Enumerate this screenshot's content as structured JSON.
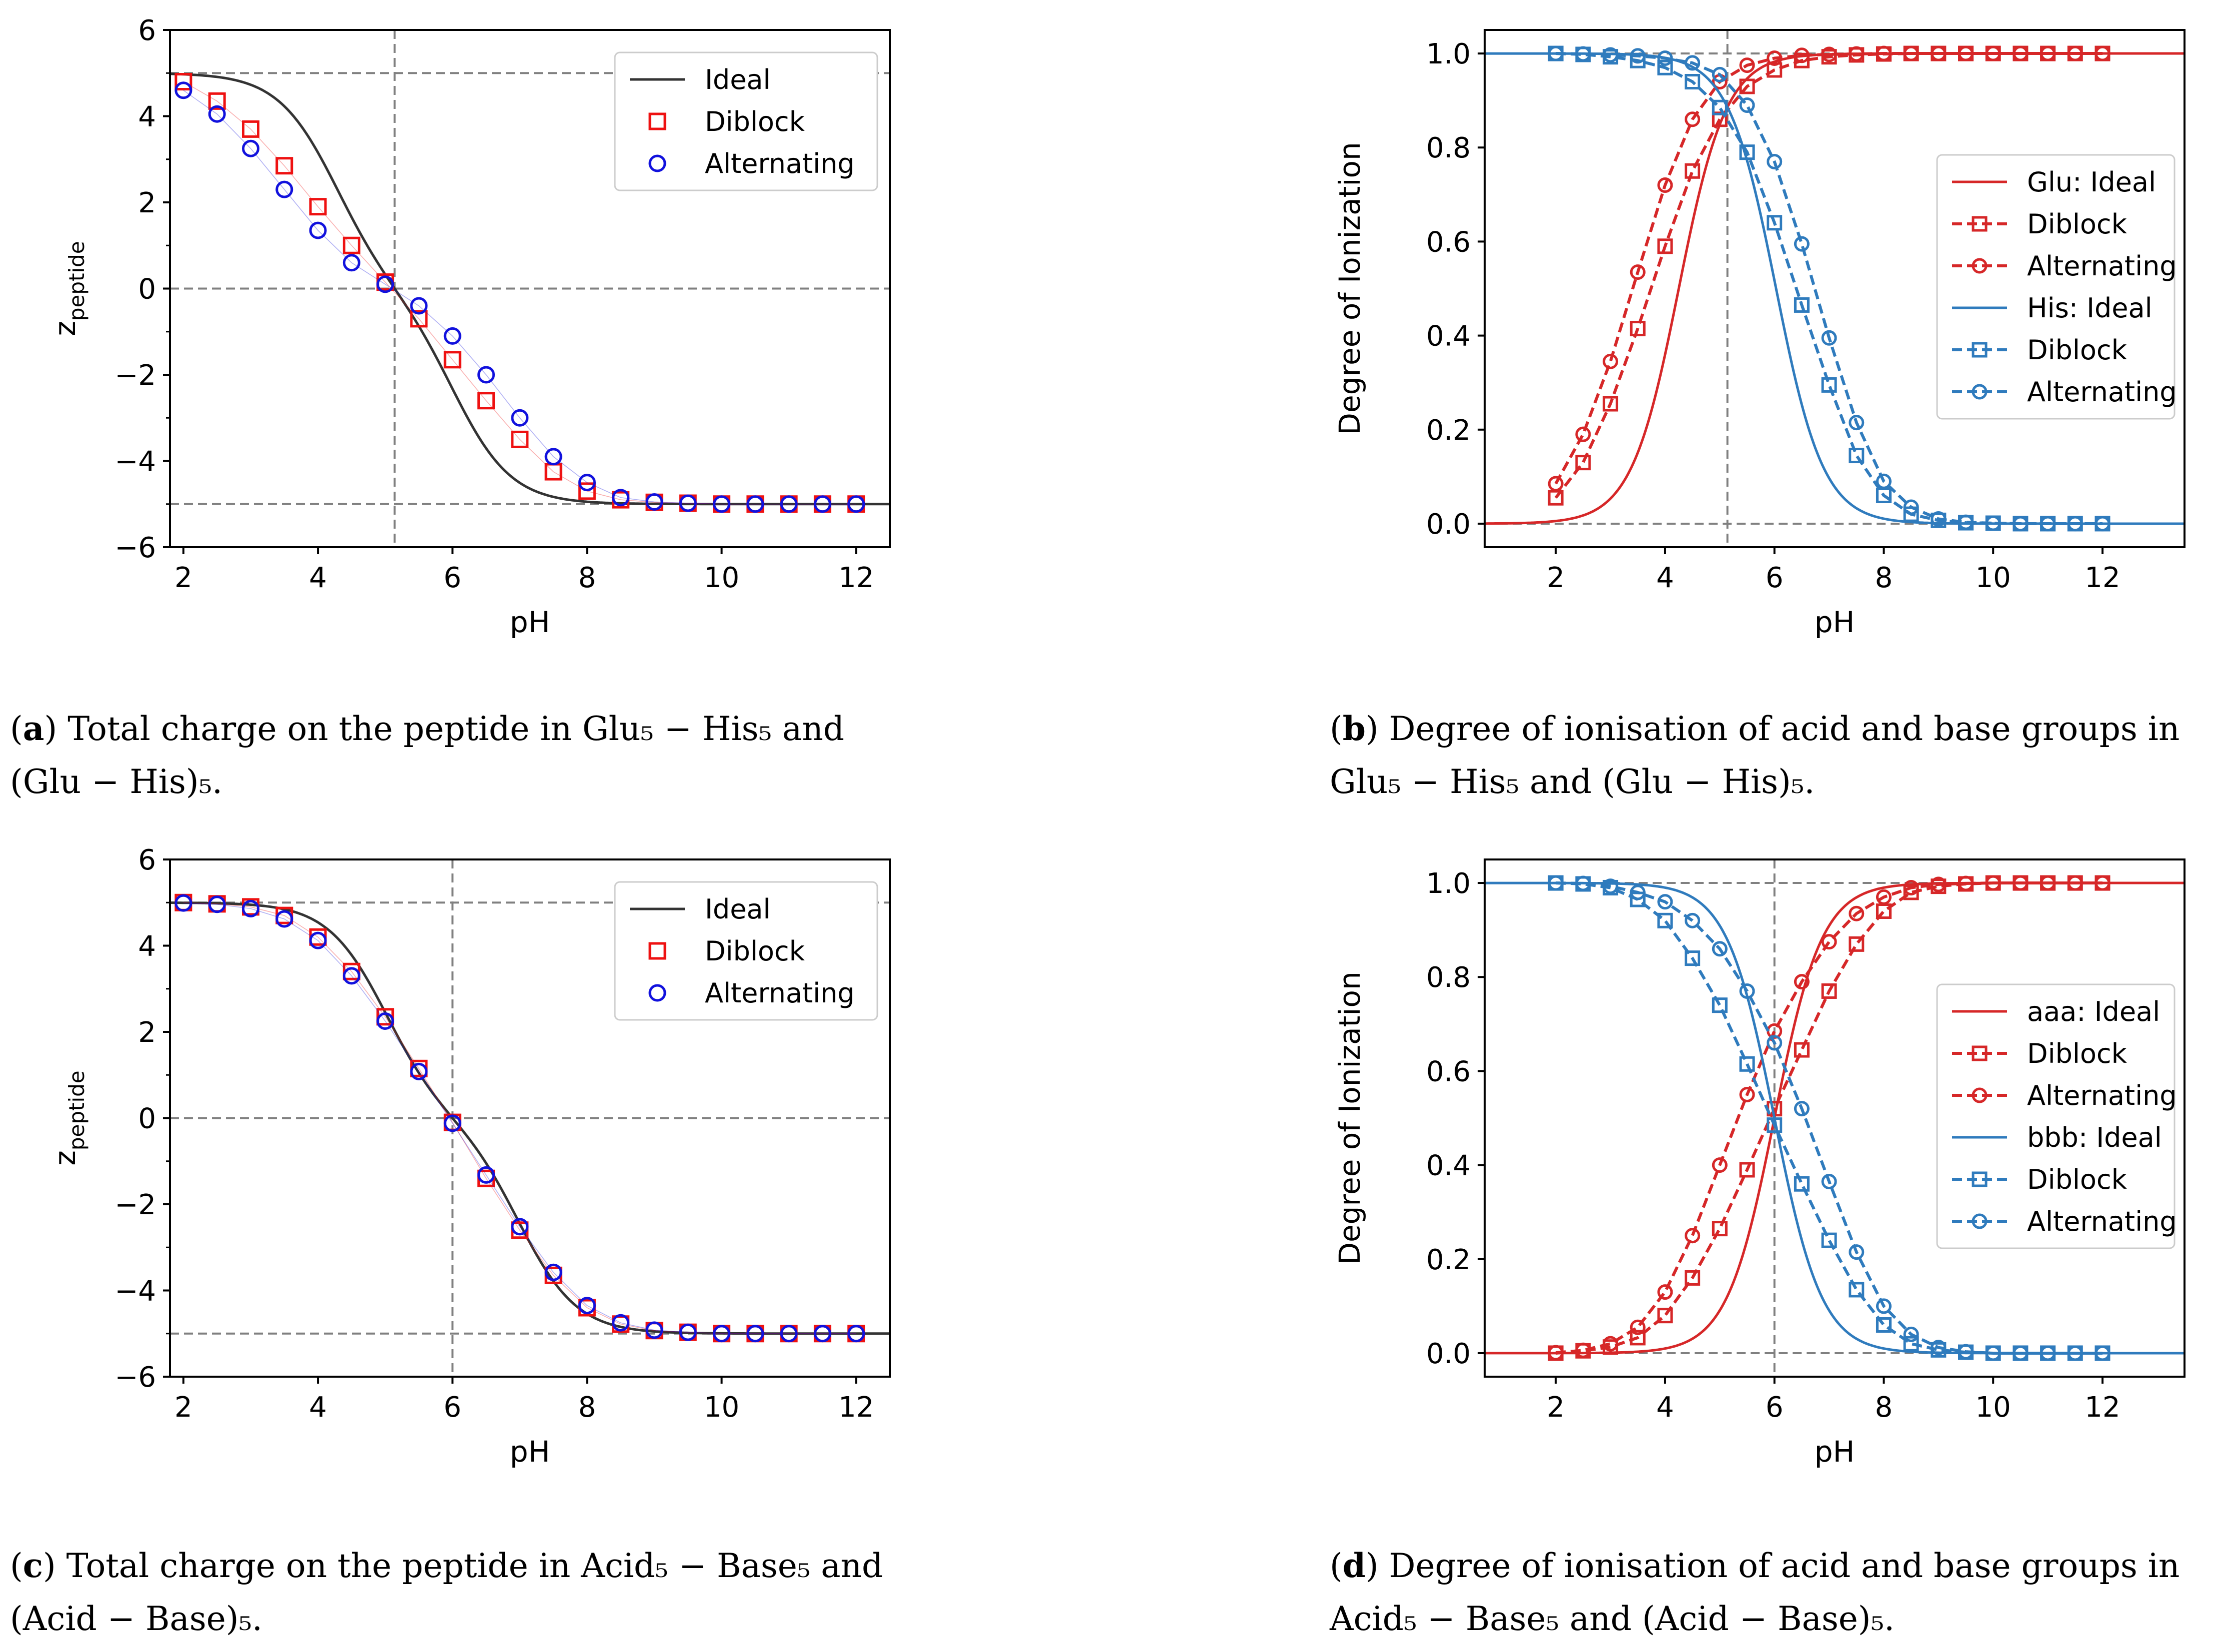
{
  "chart_data": [
    {
      "panel": "a",
      "type": "line",
      "xlabel": "pH",
      "ylabel": "z",
      "ylabel_subscript": "peptide",
      "xlim": [
        1.8,
        12.5
      ],
      "ylim": [
        -6,
        6
      ],
      "xticks": [
        2,
        4,
        6,
        8,
        10,
        12
      ],
      "yticks": [
        -6,
        -4,
        -2,
        0,
        2,
        4,
        6
      ],
      "hlines": [
        5,
        0,
        -5
      ],
      "vline": 5.14,
      "legend_position": "top-right",
      "series": [
        {
          "name": "Ideal",
          "style": "line",
          "color": "#333333",
          "curve": {
            "kind": "charge",
            "pka_acid": 4.25,
            "pka_base": 6.03,
            "n": 5
          }
        },
        {
          "name": "Diblock",
          "style": "square",
          "color": "#ee1111",
          "x": [
            2,
            2.5,
            3,
            3.5,
            4,
            4.5,
            5,
            5.5,
            6,
            6.5,
            7,
            7.5,
            8,
            8.5,
            9,
            9.5,
            10,
            10.5,
            11,
            11.5,
            12
          ],
          "y": [
            4.8,
            4.35,
            3.7,
            2.85,
            1.9,
            1.0,
            0.15,
            -0.7,
            -1.65,
            -2.6,
            -3.5,
            -4.25,
            -4.7,
            -4.9,
            -4.96,
            -4.98,
            -5.0,
            -5.0,
            -5.0,
            -5.0,
            -5.0
          ]
        },
        {
          "name": "Alternating",
          "style": "circle",
          "color": "#1111dd",
          "x": [
            2,
            2.5,
            3,
            3.5,
            4,
            4.5,
            5,
            5.5,
            6,
            6.5,
            7,
            7.5,
            8,
            8.5,
            9,
            9.5,
            10,
            10.5,
            11,
            11.5,
            12
          ],
          "y": [
            4.6,
            4.05,
            3.25,
            2.3,
            1.35,
            0.6,
            0.1,
            -0.4,
            -1.1,
            -2.0,
            -3.0,
            -3.9,
            -4.5,
            -4.85,
            -4.95,
            -4.98,
            -5.0,
            -5.0,
            -5.0,
            -5.0,
            -5.0
          ]
        }
      ]
    },
    {
      "panel": "b",
      "type": "line",
      "xlabel": "pH",
      "ylabel": "Degree of Ionization",
      "xlim": [
        0.7,
        13.5
      ],
      "ylim": [
        -0.05,
        1.05
      ],
      "xticks": [
        2,
        4,
        6,
        8,
        10,
        12
      ],
      "yticks": [
        0.0,
        0.2,
        0.4,
        0.6,
        0.8,
        1.0
      ],
      "hlines": [
        1.0,
        0.0
      ],
      "vline": 5.14,
      "legend_position": "center-right",
      "series": [
        {
          "name": "Glu: Ideal",
          "style": "line",
          "color": "#d62728",
          "curve": {
            "kind": "acid",
            "pka": 4.25
          }
        },
        {
          "name": "Diblock",
          "style": "dashed-square",
          "color": "#d62728",
          "x": [
            2,
            2.5,
            3,
            3.5,
            4,
            4.5,
            5,
            5.5,
            6,
            6.5,
            7,
            7.5,
            8,
            8.5,
            9,
            9.5,
            10,
            10.5,
            11,
            11.5,
            12
          ],
          "y": [
            0.055,
            0.13,
            0.255,
            0.415,
            0.59,
            0.75,
            0.86,
            0.93,
            0.965,
            0.985,
            0.993,
            0.997,
            0.999,
            1.0,
            1.0,
            1.0,
            1.0,
            1.0,
            1.0,
            1.0,
            1.0
          ]
        },
        {
          "name": "Alternating",
          "style": "dashed-circle",
          "color": "#d62728",
          "x": [
            2,
            2.5,
            3,
            3.5,
            4,
            4.5,
            5,
            5.5,
            6,
            6.5,
            7,
            7.5,
            8,
            8.5,
            9,
            9.5,
            10,
            10.5,
            11,
            11.5,
            12
          ],
          "y": [
            0.085,
            0.19,
            0.345,
            0.535,
            0.72,
            0.86,
            0.94,
            0.975,
            0.99,
            0.996,
            0.998,
            0.999,
            1.0,
            1.0,
            1.0,
            1.0,
            1.0,
            1.0,
            1.0,
            1.0,
            1.0
          ]
        },
        {
          "name": "His: Ideal",
          "style": "line",
          "color": "#2f7bbd",
          "curve": {
            "kind": "base",
            "pka": 6.03
          }
        },
        {
          "name": "Diblock",
          "style": "dashed-square",
          "color": "#2f7bbd",
          "x": [
            2,
            2.5,
            3,
            3.5,
            4,
            4.5,
            5,
            5.5,
            6,
            6.5,
            7,
            7.5,
            8,
            8.5,
            9,
            9.5,
            10,
            10.5,
            11,
            11.5,
            12
          ],
          "y": [
            1.0,
            0.998,
            0.993,
            0.985,
            0.97,
            0.94,
            0.885,
            0.79,
            0.64,
            0.465,
            0.295,
            0.145,
            0.06,
            0.02,
            0.007,
            0.002,
            0.001,
            0.0,
            0.0,
            0.0,
            0.0
          ]
        },
        {
          "name": "Alternating",
          "style": "dashed-circle",
          "color": "#2f7bbd",
          "x": [
            2,
            2.5,
            3,
            3.5,
            4,
            4.5,
            5,
            5.5,
            6,
            6.5,
            7,
            7.5,
            8,
            8.5,
            9,
            9.5,
            10,
            10.5,
            11,
            11.5,
            12
          ],
          "y": [
            1.0,
            0.999,
            0.997,
            0.995,
            0.99,
            0.98,
            0.955,
            0.89,
            0.77,
            0.595,
            0.395,
            0.215,
            0.09,
            0.035,
            0.01,
            0.003,
            0.001,
            0.0,
            0.0,
            0.0,
            0.0
          ]
        }
      ]
    },
    {
      "panel": "c",
      "type": "line",
      "xlabel": "pH",
      "ylabel": "z",
      "ylabel_subscript": "peptide",
      "xlim": [
        1.8,
        12.5
      ],
      "ylim": [
        -6,
        6
      ],
      "xticks": [
        2,
        4,
        6,
        8,
        10,
        12
      ],
      "yticks": [
        -6,
        -4,
        -2,
        0,
        2,
        4,
        6
      ],
      "hlines": [
        5,
        0,
        -5
      ],
      "vline": 6.0,
      "legend_position": "top-right",
      "series": [
        {
          "name": "Ideal",
          "style": "line",
          "color": "#333333",
          "curve": {
            "kind": "charge",
            "pka_acid": 5.0,
            "pka_base": 7.0,
            "n": 5
          }
        },
        {
          "name": "Diblock",
          "style": "square",
          "color": "#ee1111",
          "x": [
            2,
            2.5,
            3,
            3.5,
            4,
            4.5,
            5,
            5.5,
            6,
            6.5,
            7,
            7.5,
            8,
            8.5,
            9,
            9.5,
            10,
            10.5,
            11,
            11.5,
            12
          ],
          "y": [
            5.0,
            4.97,
            4.9,
            4.7,
            4.2,
            3.4,
            2.35,
            1.15,
            -0.1,
            -1.4,
            -2.6,
            -3.65,
            -4.4,
            -4.78,
            -4.93,
            -4.97,
            -5.0,
            -5.0,
            -5.0,
            -5.0,
            -5.0
          ]
        },
        {
          "name": "Alternating",
          "style": "circle",
          "color": "#1111dd",
          "x": [
            2,
            2.5,
            3,
            3.5,
            4,
            4.5,
            5,
            5.5,
            6,
            6.5,
            7,
            7.5,
            8,
            8.5,
            9,
            9.5,
            10,
            10.5,
            11,
            11.5,
            12
          ],
          "y": [
            4.99,
            4.96,
            4.86,
            4.62,
            4.12,
            3.3,
            2.25,
            1.08,
            -0.12,
            -1.32,
            -2.52,
            -3.58,
            -4.35,
            -4.75,
            -4.92,
            -4.97,
            -5.0,
            -5.0,
            -5.0,
            -5.0,
            -5.0
          ]
        }
      ]
    },
    {
      "panel": "d",
      "type": "line",
      "xlabel": "pH",
      "ylabel": "Degree of Ionization",
      "xlim": [
        0.7,
        13.5
      ],
      "ylim": [
        -0.05,
        1.05
      ],
      "xticks": [
        2,
        4,
        6,
        8,
        10,
        12
      ],
      "yticks": [
        0.0,
        0.2,
        0.4,
        0.6,
        0.8,
        1.0
      ],
      "hlines": [
        1.0,
        0.0
      ],
      "vline": 6.0,
      "legend_position": "center-right",
      "series": [
        {
          "name": "aaa: Ideal",
          "style": "line",
          "color": "#d62728",
          "curve": {
            "kind": "acid",
            "pka": 6.0
          }
        },
        {
          "name": "Diblock",
          "style": "dashed-square",
          "color": "#d62728",
          "x": [
            2,
            2.5,
            3,
            3.5,
            4,
            4.5,
            5,
            5.5,
            6,
            6.5,
            7,
            7.5,
            8,
            8.5,
            9,
            9.5,
            10,
            10.5,
            11,
            11.5,
            12
          ],
          "y": [
            0.0,
            0.005,
            0.013,
            0.033,
            0.08,
            0.16,
            0.265,
            0.39,
            0.52,
            0.645,
            0.77,
            0.87,
            0.94,
            0.98,
            0.993,
            0.998,
            1.0,
            1.0,
            1.0,
            1.0,
            1.0
          ]
        },
        {
          "name": "Alternating",
          "style": "dashed-circle",
          "color": "#d62728",
          "x": [
            2,
            2.5,
            3,
            3.5,
            4,
            4.5,
            5,
            5.5,
            6,
            6.5,
            7,
            7.5,
            8,
            8.5,
            9,
            9.5,
            10,
            10.5,
            11,
            11.5,
            12
          ],
          "y": [
            0.001,
            0.006,
            0.02,
            0.055,
            0.13,
            0.25,
            0.4,
            0.55,
            0.685,
            0.79,
            0.875,
            0.935,
            0.97,
            0.99,
            0.997,
            0.999,
            1.0,
            1.0,
            1.0,
            1.0,
            1.0
          ]
        },
        {
          "name": "bbb: Ideal",
          "style": "line",
          "color": "#2f7bbd",
          "curve": {
            "kind": "base",
            "pka": 6.0
          }
        },
        {
          "name": "Diblock",
          "style": "dashed-square",
          "color": "#2f7bbd",
          "x": [
            2,
            2.5,
            3,
            3.5,
            4,
            4.5,
            5,
            5.5,
            6,
            6.5,
            7,
            7.5,
            8,
            8.5,
            9,
            9.5,
            10,
            10.5,
            11,
            11.5,
            12
          ],
          "y": [
            1.0,
            0.998,
            0.99,
            0.965,
            0.92,
            0.84,
            0.74,
            0.615,
            0.485,
            0.36,
            0.24,
            0.135,
            0.06,
            0.02,
            0.007,
            0.002,
            0.0,
            0.0,
            0.0,
            0.0,
            0.0
          ]
        },
        {
          "name": "Alternating",
          "style": "dashed-circle",
          "color": "#2f7bbd",
          "x": [
            2,
            2.5,
            3,
            3.5,
            4,
            4.5,
            5,
            5.5,
            6,
            6.5,
            7,
            7.5,
            8,
            8.5,
            9,
            9.5,
            10,
            10.5,
            11,
            11.5,
            12
          ],
          "y": [
            1.0,
            0.999,
            0.993,
            0.98,
            0.96,
            0.92,
            0.86,
            0.77,
            0.66,
            0.52,
            0.365,
            0.215,
            0.1,
            0.04,
            0.012,
            0.003,
            0.0,
            0.0,
            0.0,
            0.0,
            0.0
          ]
        }
      ]
    }
  ],
  "captions": {
    "a": {
      "tag": "a",
      "line1": "Total charge on the peptide in Glu₅ − His₅ and",
      "line2": "(Glu − His)₅."
    },
    "b": {
      "tag": "b",
      "line1": "Degree of ionisation of acid and base groups in",
      "line2": "Glu₅ − His₅ and (Glu − His)₅."
    },
    "c": {
      "tag": "c",
      "line1": "Total charge on the peptide in Acid₅ − Base₅ and",
      "line2": "(Acid − Base)₅."
    },
    "d": {
      "tag": "d",
      "line1": "Degree of ionisation of acid and base groups in",
      "line2": "Acid₅ − Base₅ and (Acid − Base)₅."
    }
  }
}
